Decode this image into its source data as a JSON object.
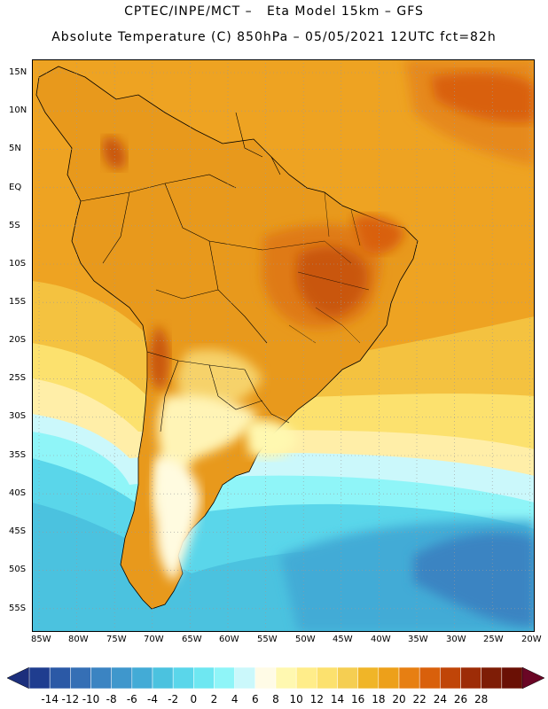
{
  "header": {
    "line1": "CPTEC/INPE/MCT –   Eta Model 15km – GFS",
    "line2": "Absolute Temperature (C) 850hPa – 05/05/2021 12UTC fct=82h"
  },
  "axes": {
    "lat_labels": [
      "15N",
      "10N",
      "5N",
      "EQ",
      "5S",
      "10S",
      "15S",
      "20S",
      "25S",
      "30S",
      "35S",
      "40S",
      "45S",
      "50S",
      "55S"
    ],
    "lon_labels": [
      "85W",
      "80W",
      "75W",
      "70W",
      "65W",
      "60W",
      "55W",
      "50W",
      "45W",
      "40W",
      "35W",
      "30W",
      "25W",
      "20W"
    ]
  },
  "colorbar": {
    "labels": [
      "-14",
      "-12",
      "-10",
      "-8",
      "-6",
      "-4",
      "-2",
      "0",
      "2",
      "4",
      "6",
      "8",
      "10",
      "12",
      "14",
      "16",
      "18",
      "20",
      "22",
      "24",
      "26",
      "28"
    ],
    "colors": [
      "#1f3d8f",
      "#2b59a6",
      "#356fb5",
      "#3b84c2",
      "#3f97cc",
      "#43abd6",
      "#4bc2df",
      "#5ad6ea",
      "#6ee7f1",
      "#8ff5f8",
      "#cbf8fb",
      "#fffbe6",
      "#fff8b0",
      "#ffed8a",
      "#fce16e",
      "#f5ce52",
      "#f0b528",
      "#eda01a",
      "#e77f12",
      "#d9600b",
      "#c04508",
      "#9d2c07",
      "#7e1d06",
      "#6a1005"
    ]
  },
  "map": {
    "ocean_colors": {
      "north": "#eea322",
      "south_warm": "#f4c240",
      "mid": "#ffe788",
      "cool": "#9fe9f3",
      "cold": "#4ec4df",
      "coldest": "#3a9bcb"
    },
    "land_colors": {
      "warm": "#e8991c",
      "hot": "#df7a12",
      "hottest": "#c9560b",
      "andes": "#d57a22",
      "south": "#fff4b6",
      "patagonia": "#fffbe0"
    }
  }
}
